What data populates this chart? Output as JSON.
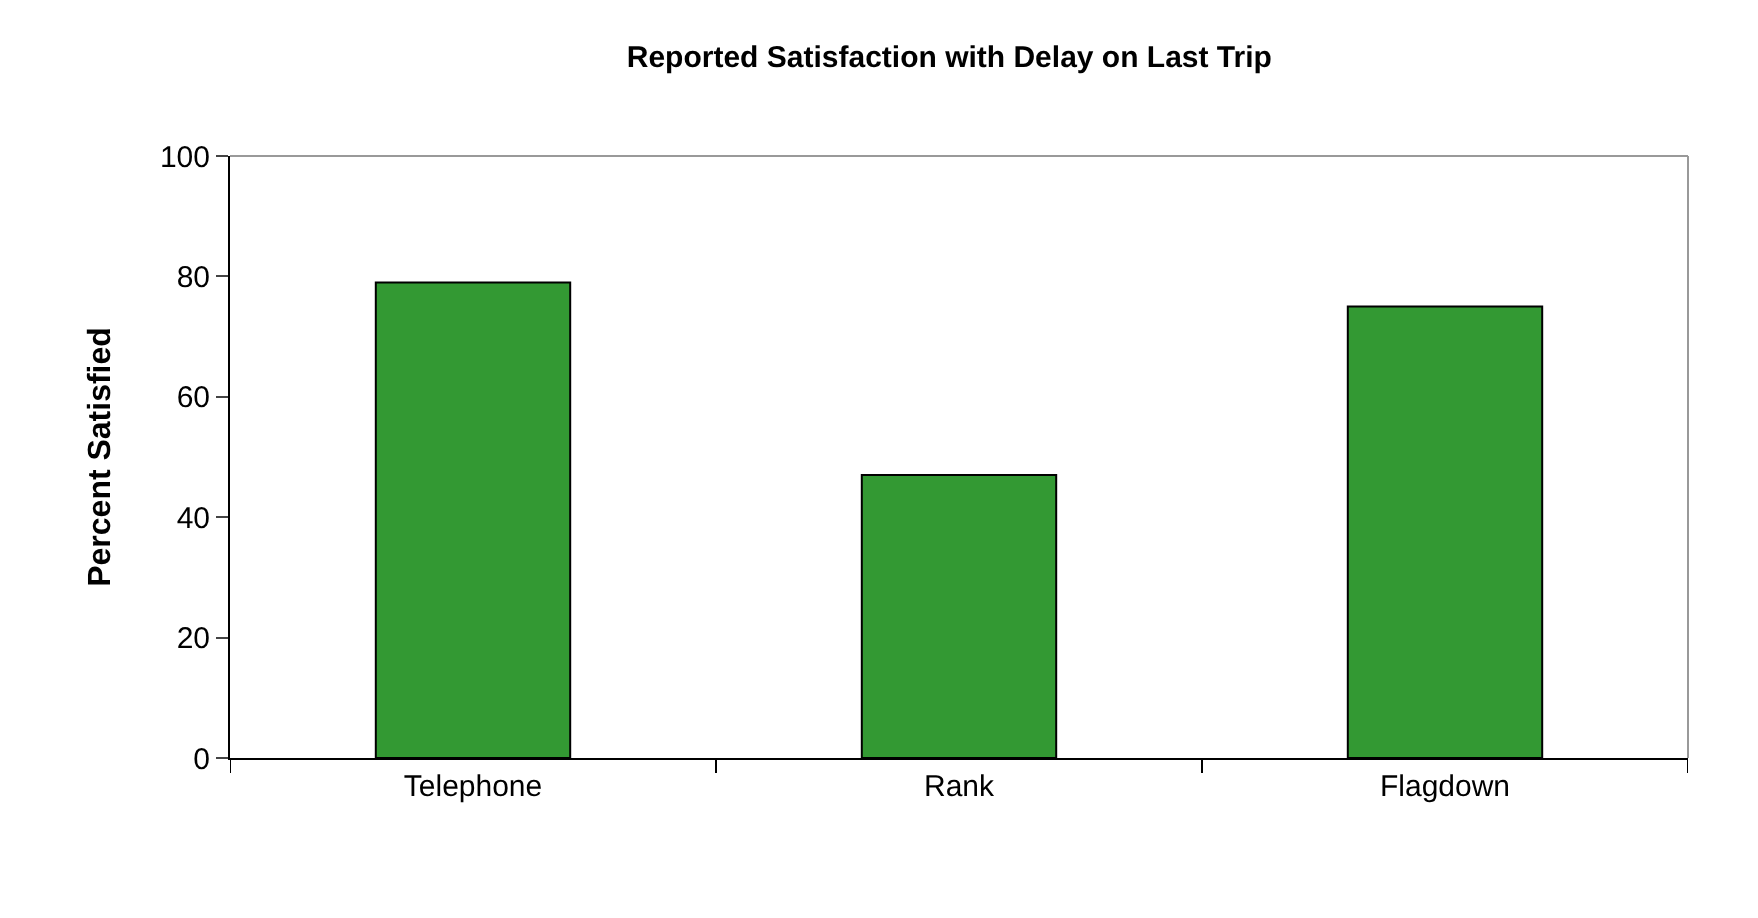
{
  "chart_data": {
    "type": "bar",
    "title": "Reported Satisfaction with Delay on Last Trip",
    "ylabel": "Percent Satisfied",
    "categories": [
      "Telephone",
      "Rank",
      "Flagdown"
    ],
    "values": [
      79,
      47,
      75
    ],
    "color": "#339933",
    "ylim": [
      0,
      100
    ],
    "yticks": [
      0,
      20,
      40,
      60,
      80,
      100
    ]
  }
}
